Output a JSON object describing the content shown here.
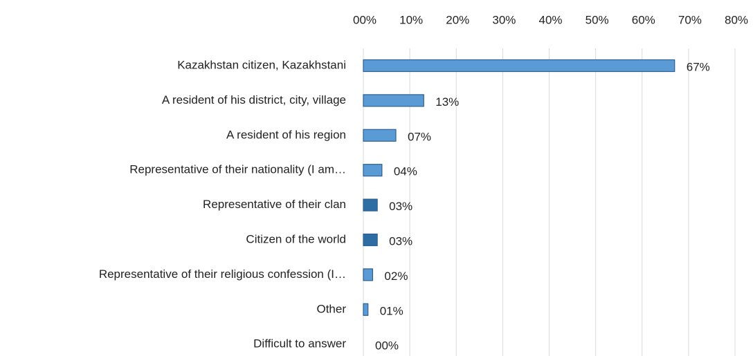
{
  "chart_data": {
    "type": "bar",
    "orientation": "horizontal",
    "categories": [
      "Kazakhstan citizen, Kazakhstani",
      "A resident of his district, city, village",
      "A resident of his region",
      "Representative of their nationality (I am…",
      "Representative of their clan",
      "Citizen of the world",
      "Representative of their religious confession (I…",
      "Other",
      "Difficult to answer"
    ],
    "values": [
      67,
      13,
      7,
      4,
      3,
      3,
      2,
      1,
      0
    ],
    "value_labels": [
      "67%",
      "13%",
      "07%",
      "04%",
      "03%",
      "03%",
      "02%",
      "01%",
      "00%"
    ],
    "colors": [
      "#5b9bd5",
      "#5b9bd5",
      "#5b9bd5",
      "#5b9bd5",
      "#2e6ca4",
      "#2e6ca4",
      "#5b9bd5",
      "#5b9bd5",
      "#5b9bd5"
    ],
    "xlim": [
      0,
      80
    ],
    "xticks": [
      {
        "value": 0,
        "label": "00%"
      },
      {
        "value": 10,
        "label": "10%"
      },
      {
        "value": 20,
        "label": "20%"
      },
      {
        "value": 30,
        "label": "30%"
      },
      {
        "value": 40,
        "label": "40%"
      },
      {
        "value": 50,
        "label": "50%"
      },
      {
        "value": 60,
        "label": "60%"
      },
      {
        "value": 70,
        "label": "70%"
      },
      {
        "value": 80,
        "label": "80%"
      }
    ],
    "xaxis_position": "top",
    "grid": true
  }
}
